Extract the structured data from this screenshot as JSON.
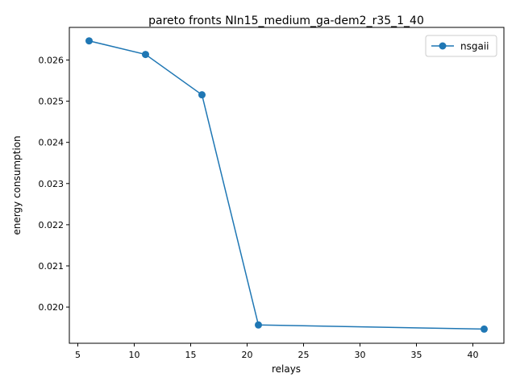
{
  "chart_data": {
    "type": "line",
    "title": "pareto fronts NIn15_medium_ga-dem2_r35_1_40",
    "xlabel": "relays",
    "ylabel": "energy consumption",
    "xlim": [
      4.25,
      42.75
    ],
    "ylim": [
      0.019121,
      0.026792
    ],
    "x_ticks": [
      5,
      10,
      15,
      20,
      25,
      30,
      35,
      40
    ],
    "x_tick_labels": [
      "5",
      "10",
      "15",
      "20",
      "25",
      "30",
      "35",
      "40"
    ],
    "y_ticks": [
      0.02,
      0.021,
      0.022,
      0.023,
      0.024,
      0.025,
      0.026
    ],
    "y_tick_labels": [
      "0.020",
      "0.021",
      "0.022",
      "0.023",
      "0.024",
      "0.025",
      "0.026"
    ],
    "grid": false,
    "legend_position": "top-right",
    "series": [
      {
        "name": "nsgaii",
        "color": "#1f77b4",
        "marker": "circle",
        "x": [
          6,
          11,
          16,
          21,
          41
        ],
        "y": [
          0.026465,
          0.026135,
          0.025155,
          0.019565,
          0.019465
        ]
      }
    ]
  }
}
